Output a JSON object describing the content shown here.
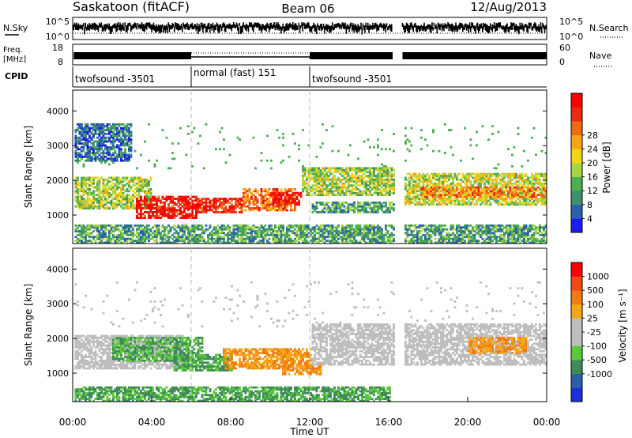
{
  "header": {
    "station": "Saskatoon (fitACF)",
    "beam": "Beam 06",
    "date": "12/Aug/2013"
  },
  "summary_panels": {
    "nsky": {
      "left_label": "N.Sky",
      "right_label": "N.Search",
      "left_ticks": [
        "10^5",
        "10^0"
      ],
      "right_ticks": [
        "10^5",
        "10^0"
      ]
    },
    "freq": {
      "left_label_1": "Freq.",
      "left_label_2": "[MHz]",
      "right_label": "Nave",
      "left_ticks": [
        "18",
        "8"
      ],
      "right_ticks": [
        "60",
        "0"
      ]
    },
    "cpid": {
      "label": "CPID",
      "segments": [
        {
          "label": "twofsound -3501",
          "start_hour": 0,
          "end_hour": 6
        },
        {
          "label": "normal (fast) 151",
          "start_hour": 6,
          "end_hour": 12
        },
        {
          "label": "twofsound -3501",
          "start_hour": 12,
          "end_hour": 24
        }
      ]
    }
  },
  "chart_data": [
    {
      "type": "heatmap",
      "name": "power",
      "ylabel": "Slant Range [km]",
      "xlim_hours": [
        0,
        24
      ],
      "ylim": [
        180,
        4600
      ],
      "yticks": [
        1000,
        2000,
        3000,
        4000
      ],
      "data_gap_hours": [
        16.2,
        16.7
      ],
      "colorbar": {
        "label": "Power [dB]",
        "ticks": [
          "4",
          "8",
          "12",
          "16",
          "20",
          "24",
          "28"
        ],
        "colors": [
          "#1c1cf0",
          "#2b5fb0",
          "#3f8f6c",
          "#4caf50",
          "#a6d642",
          "#f2d41c",
          "#f5a516",
          "#f06a14",
          "#e82c14",
          "#ff0000"
        ]
      },
      "bands": [
        {
          "t0": 0.1,
          "t1": 4.0,
          "r0": 1150,
          "r1": 2100,
          "level": 0.45
        },
        {
          "t0": 3.2,
          "t1": 6.2,
          "r0": 850,
          "r1": 1500,
          "level": 0.95
        },
        {
          "t0": 6.2,
          "t1": 8.5,
          "r0": 1050,
          "r1": 1450,
          "level": 0.88
        },
        {
          "t0": 8.5,
          "t1": 11.2,
          "r0": 1100,
          "r1": 1750,
          "level": 0.75
        },
        {
          "t0": 10.0,
          "t1": 11.5,
          "r0": 1250,
          "r1": 1650,
          "level": 0.95
        },
        {
          "t0": 11.5,
          "t1": 16.2,
          "r0": 1550,
          "r1": 2350,
          "level": 0.45
        },
        {
          "t0": 12.0,
          "t1": 16.2,
          "r0": 1050,
          "r1": 1350,
          "level": 0.3
        },
        {
          "t0": 16.7,
          "t1": 24.0,
          "r0": 1250,
          "r1": 2200,
          "level": 0.5
        },
        {
          "t0": 17.5,
          "t1": 24.0,
          "r0": 1450,
          "r1": 1800,
          "level": 0.7
        },
        {
          "t0": 0.1,
          "t1": 3.0,
          "r0": 2500,
          "r1": 3600,
          "level": 0.2
        },
        {
          "t0": 0.1,
          "t1": 24.0,
          "r0": 180,
          "r1": 700,
          "level": 0.3
        }
      ]
    },
    {
      "type": "heatmap",
      "name": "velocity",
      "xlabel": "Time UT",
      "ylabel": "Slant Range [km]",
      "xlim_hours": [
        0,
        24
      ],
      "xticks": [
        "00:00",
        "04:00",
        "08:00",
        "12:00",
        "16:00",
        "20:00",
        "00:00"
      ],
      "ylim": [
        180,
        4600
      ],
      "yticks": [
        1000,
        2000,
        3000,
        4000
      ],
      "data_gap_hours": [
        16.2,
        16.7
      ],
      "colorbar": {
        "label": "Velocity [m s⁻¹]",
        "ticks": [
          "1000",
          "500",
          "100",
          "25",
          "-25",
          "-100",
          "-500",
          "-1000"
        ],
        "colors": [
          "#1a2fd8",
          "#2c5fa8",
          "#3f8a5a",
          "#5cc83a",
          "#bebebe",
          "#bebebe",
          "#f5a516",
          "#f07a14",
          "#ee4a14",
          "#ff0000"
        ]
      },
      "bands": [
        {
          "t0": 0.1,
          "t1": 5.5,
          "r0": 1100,
          "r1": 2100,
          "kind": "gray"
        },
        {
          "t0": 2.0,
          "t1": 6.5,
          "r0": 1300,
          "r1": 2000,
          "kind": "green"
        },
        {
          "t0": 5.0,
          "t1": 8.0,
          "r0": 1050,
          "r1": 1550,
          "kind": "green"
        },
        {
          "t0": 7.5,
          "t1": 12.0,
          "r0": 1100,
          "r1": 1700,
          "kind": "orange"
        },
        {
          "t0": 10.5,
          "t1": 12.5,
          "r0": 900,
          "r1": 1250,
          "kind": "orange"
        },
        {
          "t0": 12.0,
          "t1": 16.2,
          "r0": 1200,
          "r1": 2400,
          "kind": "gray"
        },
        {
          "t0": 16.7,
          "t1": 24.0,
          "r0": 1200,
          "r1": 2400,
          "kind": "gray"
        },
        {
          "t0": 20.0,
          "t1": 23.0,
          "r0": 1550,
          "r1": 2000,
          "kind": "orange"
        },
        {
          "t0": 0.1,
          "t1": 16.0,
          "r0": 180,
          "r1": 600,
          "kind": "green"
        }
      ]
    }
  ]
}
